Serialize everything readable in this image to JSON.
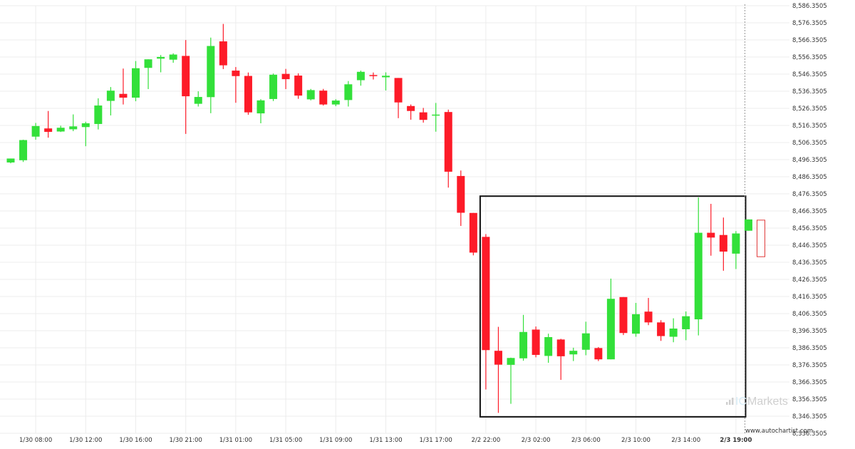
{
  "chart_data": {
    "type": "candlestick",
    "ylim": [
      8336.3505,
      8586.3505
    ],
    "y_tick_step": 10,
    "y_tick_labels": [
      "8,336.3505",
      "8,346.3505",
      "8,356.3505",
      "8,366.3505",
      "8,376.3505",
      "8,386.3505",
      "8,396.3505",
      "8,406.3505",
      "8,416.3505",
      "8,426.3505",
      "8,436.3505",
      "8,446.3505",
      "8,456.3505",
      "8,466.3505",
      "8,476.3505",
      "8,486.3505",
      "8,496.3505",
      "8,506.3505",
      "8,516.3505",
      "8,526.3505",
      "8,536.3505",
      "8,546.3505",
      "8,556.3505",
      "8,566.3505",
      "8,576.3505",
      "8,586.3505"
    ],
    "x_tick_labels": [
      {
        "label": "1/30 08:00",
        "index": 2,
        "bold": false
      },
      {
        "label": "1/30 12:00",
        "index": 6,
        "bold": false
      },
      {
        "label": "1/30 16:00",
        "index": 10,
        "bold": false
      },
      {
        "label": "1/30 21:00",
        "index": 14,
        "bold": false
      },
      {
        "label": "1/31 01:00",
        "index": 18,
        "bold": false
      },
      {
        "label": "1/31 05:00",
        "index": 22,
        "bold": false
      },
      {
        "label": "1/31 09:00",
        "index": 26,
        "bold": false
      },
      {
        "label": "1/31 13:00",
        "index": 30,
        "bold": false
      },
      {
        "label": "1/31 17:00",
        "index": 34,
        "bold": false
      },
      {
        "label": "2/2 22:00",
        "index": 38,
        "bold": false
      },
      {
        "label": "2/3 02:00",
        "index": 42,
        "bold": false
      },
      {
        "label": "2/3 06:00",
        "index": 46,
        "bold": false
      },
      {
        "label": "2/3 10:00",
        "index": 50,
        "bold": false
      },
      {
        "label": "2/3 14:00",
        "index": 54,
        "bold": false
      },
      {
        "label": "2/3 19:00",
        "index": 58,
        "bold": true
      }
    ],
    "candles": [
      {
        "o": 8494.7,
        "h": 8497.0,
        "l": 8494.2,
        "c": 8497.0
      },
      {
        "o": 8496.0,
        "h": 8508.0,
        "l": 8495.0,
        "c": 8507.8
      },
      {
        "o": 8509.8,
        "h": 8517.8,
        "l": 8508.0,
        "c": 8516.0
      },
      {
        "o": 8514.6,
        "h": 8524.8,
        "l": 8509.2,
        "c": 8512.6
      },
      {
        "o": 8512.8,
        "h": 8516.2,
        "l": 8512.5,
        "c": 8515.0
      },
      {
        "o": 8514.1,
        "h": 8522.8,
        "l": 8513.0,
        "c": 8515.8
      },
      {
        "o": 8515.4,
        "h": 8518.5,
        "l": 8504.2,
        "c": 8517.6
      },
      {
        "o": 8517.2,
        "h": 8532.2,
        "l": 8514.0,
        "c": 8528.0
      },
      {
        "o": 8530.7,
        "h": 8538.8,
        "l": 8522.2,
        "c": 8536.7
      },
      {
        "o": 8534.8,
        "h": 8549.6,
        "l": 8528.6,
        "c": 8532.6
      },
      {
        "o": 8532.6,
        "h": 8554.0,
        "l": 8530.5,
        "c": 8549.8
      },
      {
        "o": 8550.0,
        "h": 8555.0,
        "l": 8537.6,
        "c": 8555.0
      },
      {
        "o": 8555.4,
        "h": 8557.5,
        "l": 8547.4,
        "c": 8556.4
      },
      {
        "o": 8554.8,
        "h": 8558.5,
        "l": 8553.0,
        "c": 8557.8
      },
      {
        "o": 8557.0,
        "h": 8566.3,
        "l": 8511.4,
        "c": 8533.4
      },
      {
        "o": 8529.0,
        "h": 8536.3,
        "l": 8527.4,
        "c": 8533.0
      },
      {
        "o": 8532.9,
        "h": 8567.7,
        "l": 8523.5,
        "c": 8562.8
      },
      {
        "o": 8565.5,
        "h": 8575.7,
        "l": 8549.3,
        "c": 8551.5
      },
      {
        "o": 8548.4,
        "h": 8550.5,
        "l": 8529.6,
        "c": 8545.2
      },
      {
        "o": 8545.3,
        "h": 8547.3,
        "l": 8522.6,
        "c": 8524.0
      },
      {
        "o": 8523.4,
        "h": 8531.7,
        "l": 8517.6,
        "c": 8531.0
      },
      {
        "o": 8531.8,
        "h": 8546.7,
        "l": 8530.6,
        "c": 8546.0
      },
      {
        "o": 8546.5,
        "h": 8549.4,
        "l": 8537.6,
        "c": 8543.4
      },
      {
        "o": 8545.5,
        "h": 8546.8,
        "l": 8531.9,
        "c": 8533.8
      },
      {
        "o": 8531.6,
        "h": 8537.7,
        "l": 8531.0,
        "c": 8537.0
      },
      {
        "o": 8536.7,
        "h": 8537.7,
        "l": 8528.0,
        "c": 8528.6
      },
      {
        "o": 8528.6,
        "h": 8531.7,
        "l": 8527.6,
        "c": 8530.9
      },
      {
        "o": 8531.2,
        "h": 8542.3,
        "l": 8527.4,
        "c": 8540.4
      },
      {
        "o": 8542.8,
        "h": 8548.4,
        "l": 8539.6,
        "c": 8547.7
      },
      {
        "o": 8545.8,
        "h": 8547.3,
        "l": 8543.2,
        "c": 8545.5
      },
      {
        "o": 8544.5,
        "h": 8547.4,
        "l": 8536.8,
        "c": 8545.4
      },
      {
        "o": 8544.1,
        "h": 8544.1,
        "l": 8520.6,
        "c": 8529.8
      },
      {
        "o": 8527.7,
        "h": 8528.6,
        "l": 8519.7,
        "c": 8524.8
      },
      {
        "o": 8524.0,
        "h": 8526.6,
        "l": 8518.0,
        "c": 8519.6
      },
      {
        "o": 8522.7,
        "h": 8529.5,
        "l": 8512.7,
        "c": 8522.7
      },
      {
        "o": 8524.2,
        "h": 8525.6,
        "l": 8480.0,
        "c": 8489.3
      },
      {
        "o": 8486.8,
        "h": 8490.0,
        "l": 8457.6,
        "c": 8465.3
      },
      {
        "o": 8465.2,
        "h": 8465.2,
        "l": 8440.4,
        "c": 8442.0
      },
      {
        "o": 8451.2,
        "h": 8452.8,
        "l": 8362.0,
        "c": 8385.0
      },
      {
        "o": 8384.6,
        "h": 8398.6,
        "l": 8348.3,
        "c": 8376.5
      },
      {
        "o": 8376.4,
        "h": 8380.6,
        "l": 8353.6,
        "c": 8380.4
      },
      {
        "o": 8380.2,
        "h": 8405.6,
        "l": 8378.8,
        "c": 8395.6
      },
      {
        "o": 8397.0,
        "h": 8398.8,
        "l": 8380.8,
        "c": 8382.2
      },
      {
        "o": 8381.6,
        "h": 8394.6,
        "l": 8377.6,
        "c": 8392.6
      },
      {
        "o": 8391.2,
        "h": 8391.6,
        "l": 8367.6,
        "c": 8381.4
      },
      {
        "o": 8382.5,
        "h": 8386.4,
        "l": 8378.6,
        "c": 8384.6
      },
      {
        "o": 8385.2,
        "h": 8401.6,
        "l": 8382.0,
        "c": 8394.8
      },
      {
        "o": 8386.2,
        "h": 8386.8,
        "l": 8378.6,
        "c": 8379.6
      },
      {
        "o": 8379.6,
        "h": 8426.8,
        "l": 8379.6,
        "c": 8415.0
      },
      {
        "o": 8416.0,
        "h": 8416.0,
        "l": 8393.8,
        "c": 8395.0
      },
      {
        "o": 8394.6,
        "h": 8412.6,
        "l": 8392.8,
        "c": 8406.0
      },
      {
        "o": 8407.5,
        "h": 8415.5,
        "l": 8399.6,
        "c": 8401.2
      },
      {
        "o": 8401.2,
        "h": 8402.5,
        "l": 8390.4,
        "c": 8393.2
      },
      {
        "o": 8392.8,
        "h": 8403.6,
        "l": 8389.6,
        "c": 8397.6
      },
      {
        "o": 8397.2,
        "h": 8407.6,
        "l": 8390.8,
        "c": 8404.8
      },
      {
        "o": 8403.0,
        "h": 8474.2,
        "l": 8393.6,
        "c": 8453.6
      },
      {
        "o": 8453.6,
        "h": 8470.5,
        "l": 8440.2,
        "c": 8450.8
      },
      {
        "o": 8452.3,
        "h": 8462.5,
        "l": 8431.4,
        "c": 8442.6
      },
      {
        "o": 8441.4,
        "h": 8454.6,
        "l": 8432.4,
        "c": 8453.2
      },
      {
        "o": 8454.8,
        "h": 8461.4,
        "l": 8454.8,
        "c": 8461.4
      },
      {
        "o": 8461.0,
        "h": 8461.0,
        "l": 8439.6,
        "c": 8439.6,
        "hollow": true
      }
    ],
    "pattern_box": {
      "start_index": 38,
      "end_index": 59,
      "high": 8475.0,
      "low": 8346.0
    },
    "cursor_index": 59
  },
  "colors": {
    "up": "#33e03a",
    "down": "#fd1b28",
    "hollow_stroke": "#e03a3a",
    "box": "#111111",
    "grid": "#ececec",
    "axis_text": "#333333",
    "cursor": "#999999",
    "watermark": "#cfcfcf"
  },
  "watermark": {
    "brand_prefix": "IC",
    "brand_suffix": "Markets"
  },
  "credit": "www.autochartist.com"
}
